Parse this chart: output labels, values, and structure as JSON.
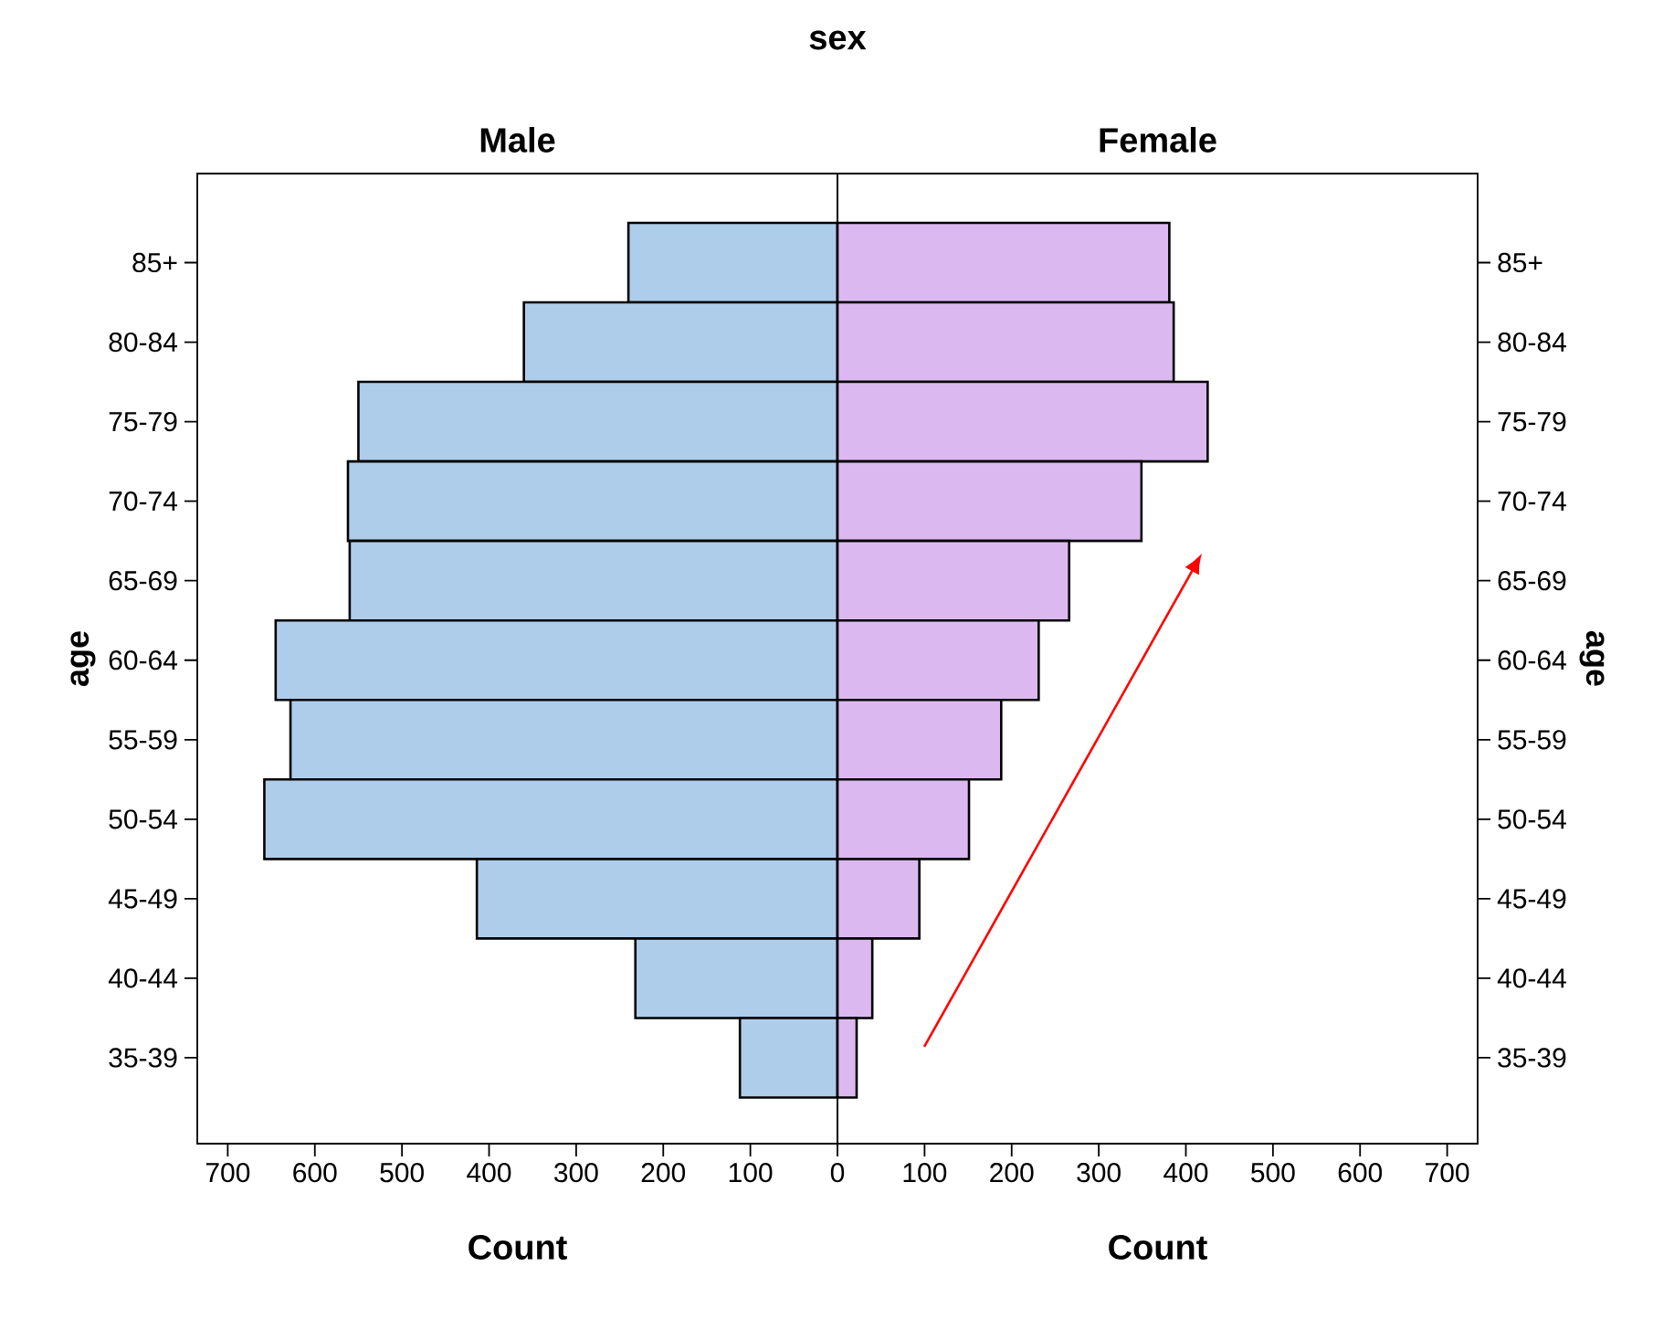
{
  "chart_data": [
    {
      "type": "bar",
      "orientation": "horizontal",
      "title": "Male",
      "annotations": [
        "sex"
      ],
      "xlabel": "Count",
      "ylabel": "age",
      "categories": [
        "85+",
        "80-84",
        "75-79",
        "70-74",
        "65-69",
        "60-64",
        "55-59",
        "50-54",
        "45-49",
        "40-44",
        "35-39"
      ],
      "values": [
        240,
        360,
        550,
        562,
        560,
        645,
        628,
        658,
        414,
        232,
        112
      ],
      "color": "#aecdeb",
      "xlim": [
        735,
        0
      ],
      "xticks": [
        700,
        600,
        500,
        400,
        300,
        200,
        100
      ]
    },
    {
      "type": "bar",
      "orientation": "horizontal",
      "title": "Female",
      "xlabel": "Count",
      "ylabel": "age",
      "categories": [
        "85+",
        "80-84",
        "75-79",
        "70-74",
        "65-69",
        "60-64",
        "55-59",
        "50-54",
        "45-49",
        "40-44",
        "35-39"
      ],
      "values": [
        381,
        386,
        425,
        349,
        266,
        231,
        188,
        151,
        94,
        40,
        22
      ],
      "color": "#dbb9f0",
      "xlim": [
        0,
        735
      ],
      "xticks": [
        0,
        100,
        200,
        300,
        400,
        500,
        600,
        700
      ]
    }
  ]
}
